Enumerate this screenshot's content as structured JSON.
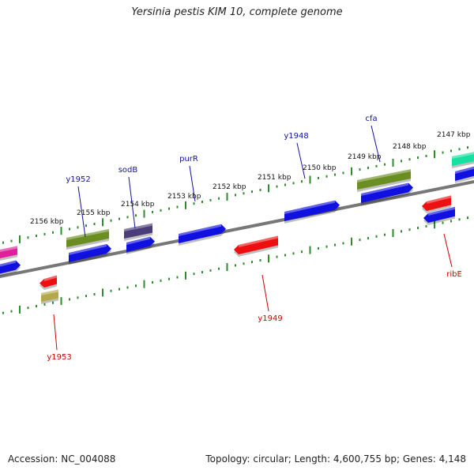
{
  "title": "Yersinia pestis KIM 10, complete genome",
  "footer": {
    "accession": "Accession: NC_004088",
    "topology": "Topology: circular; Length: 4,600,755 bp; Genes: 4,148"
  },
  "colors": {
    "backbone": "#777777",
    "tick": "#2e8b2e",
    "label_fwd": "#1010a0",
    "label_rev": "#cc0000",
    "blue": "#1010e0",
    "red": "#ee1010",
    "olive": "#6b8e23",
    "purple": "#4b3c7a",
    "pink": "#e0209a",
    "khaki": "#b5a84a",
    "cyan": "#18e0a0"
  },
  "ruler_labels": [
    "2156 kbp",
    "2155 kbp",
    "2154 kbp",
    "2153 kbp",
    "2152 kbp",
    "2151 kbp",
    "2150 kbp",
    "2149 kbp",
    "2148 kbp",
    "2147 kbp"
  ],
  "gene_labels": [
    {
      "name": "y1952",
      "strand": "fwd"
    },
    {
      "name": "sodB",
      "strand": "fwd"
    },
    {
      "name": "purR",
      "strand": "fwd"
    },
    {
      "name": "y1948",
      "strand": "fwd"
    },
    {
      "name": "cfa",
      "strand": "fwd"
    },
    {
      "name": "y1953",
      "strand": "rev"
    },
    {
      "name": "y1949",
      "strand": "rev"
    },
    {
      "name": "ribE",
      "strand": "rev"
    }
  ]
}
